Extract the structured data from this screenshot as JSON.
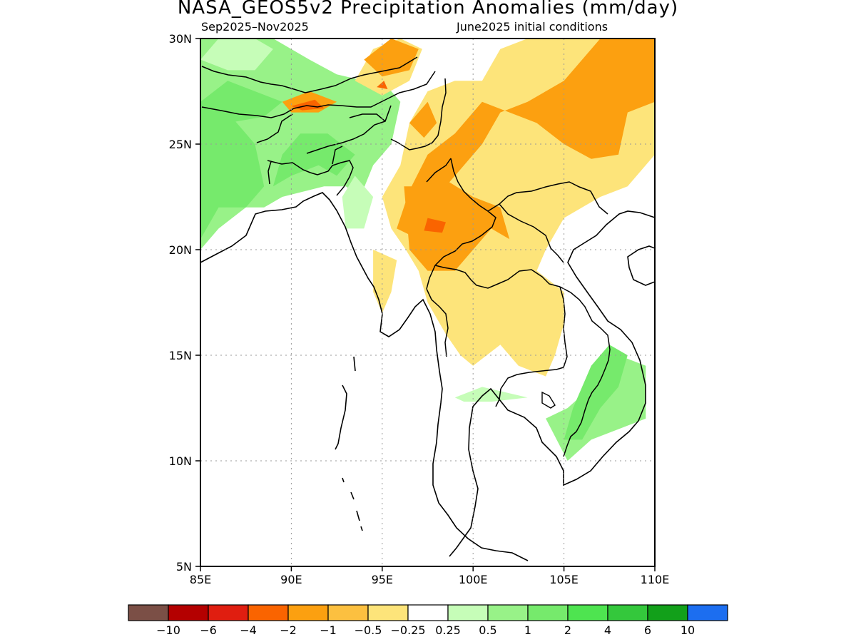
{
  "title": "NASA_GEOS5v2 Precipitation Anomalies (mm/day)",
  "period": "Sep2025–Nov2025",
  "initial_conditions": "June2025 initial conditions",
  "map": {
    "lon_range": [
      85,
      110
    ],
    "lat_range": [
      5,
      30
    ],
    "lon_ticks": [
      {
        "value": 85,
        "label": "85E"
      },
      {
        "value": 90,
        "label": "90E"
      },
      {
        "value": 95,
        "label": "95E"
      },
      {
        "value": 100,
        "label": "100E"
      },
      {
        "value": 105,
        "label": "105E"
      },
      {
        "value": 110,
        "label": "110E"
      }
    ],
    "lat_ticks": [
      {
        "value": 5,
        "label": "5N"
      },
      {
        "value": 10,
        "label": "10N"
      },
      {
        "value": 15,
        "label": "15N"
      },
      {
        "value": 20,
        "label": "20N"
      },
      {
        "value": 25,
        "label": "25N"
      },
      {
        "value": 30,
        "label": "30N"
      }
    ],
    "grid": "dotted"
  },
  "colorbar": {
    "colors": [
      "#7b4f46",
      "#b40000",
      "#e01e10",
      "#fa6400",
      "#fca010",
      "#fcc040",
      "#fde47a",
      "#ffffff",
      "#c6fdb8",
      "#98f288",
      "#76ea6c",
      "#4ee450",
      "#34c83c",
      "#12a01a",
      "#1c6ef0"
    ],
    "labels": [
      "−10",
      "−6",
      "−4",
      "−2",
      "−1",
      "−0.5",
      "−0.25",
      "0.25",
      "0.5",
      "1",
      "2",
      "4",
      "6",
      "10"
    ]
  },
  "anomaly_regions": [
    {
      "category": "0.5",
      "color": "#98f288",
      "polygon": [
        [
          85,
          20
        ],
        [
          86,
          21
        ],
        [
          87.5,
          22
        ],
        [
          88.5,
          22
        ],
        [
          89.5,
          22.5
        ],
        [
          91.8,
          23
        ],
        [
          93,
          23
        ],
        [
          93.8,
          22.5
        ],
        [
          94.5,
          24
        ],
        [
          95.5,
          25
        ],
        [
          96,
          27
        ],
        [
          95,
          28
        ],
        [
          94,
          28
        ],
        [
          92.5,
          28.3
        ],
        [
          91,
          29
        ],
        [
          89,
          30
        ],
        [
          85,
          30
        ]
      ]
    },
    {
      "category": "0.25",
      "color": "#c6fdb8",
      "polygon": [
        [
          85,
          29
        ],
        [
          86,
          30
        ],
        [
          88,
          30
        ],
        [
          89,
          29.5
        ],
        [
          88,
          28.5
        ],
        [
          86.5,
          28.5
        ]
      ]
    },
    {
      "category": "0.25",
      "color": "#c6fdb8",
      "polygon": [
        [
          93,
          21
        ],
        [
          94,
          21
        ],
        [
          94.5,
          22.5
        ],
        [
          93.5,
          23.5
        ],
        [
          92.8,
          22.5
        ]
      ]
    },
    {
      "category": "1",
      "color": "#76ea6c",
      "polygon": [
        [
          85,
          20.5
        ],
        [
          86,
          22
        ],
        [
          87.5,
          22
        ],
        [
          88.5,
          23
        ],
        [
          88,
          25
        ],
        [
          86.5,
          26.5
        ],
        [
          85,
          27
        ]
      ]
    },
    {
      "category": "1",
      "color": "#76ea6c",
      "polygon": [
        [
          89,
          23
        ],
        [
          90,
          23.5
        ],
        [
          91.5,
          24
        ],
        [
          92.5,
          23.5
        ],
        [
          93.5,
          24.5
        ],
        [
          92,
          25.5
        ],
        [
          90.5,
          25.5
        ],
        [
          89.5,
          24.5
        ]
      ]
    },
    {
      "category": "1",
      "color": "#76ea6c",
      "polygon": [
        [
          85,
          27
        ],
        [
          86.5,
          28
        ],
        [
          88,
          27.5
        ],
        [
          89.5,
          27
        ],
        [
          88.5,
          26.3
        ],
        [
          86.5,
          26
        ]
      ]
    },
    {
      "category": "0.5",
      "color": "#98f288",
      "polygon": [
        [
          107,
          14
        ],
        [
          108,
          15
        ],
        [
          109.5,
          14.5
        ],
        [
          109.5,
          12
        ],
        [
          108,
          11.5
        ],
        [
          106.5,
          11
        ],
        [
          105.2,
          10
        ],
        [
          104,
          12
        ],
        [
          105.2,
          12.5
        ],
        [
          106.5,
          13.5
        ]
      ]
    },
    {
      "category": "1",
      "color": "#76ea6c",
      "polygon": [
        [
          106,
          11
        ],
        [
          107,
          12.5
        ],
        [
          108,
          13.5
        ],
        [
          108.5,
          15
        ],
        [
          107.5,
          15.5
        ],
        [
          106.5,
          14.5
        ],
        [
          105.5,
          12.5
        ],
        [
          105,
          11
        ]
      ]
    },
    {
      "category": "0.25",
      "color": "#c6fdb8",
      "polygon": [
        [
          99,
          13
        ],
        [
          100.5,
          13.5
        ],
        [
          103,
          13
        ],
        [
          101,
          12.8
        ],
        [
          99.5,
          12.8
        ]
      ]
    },
    {
      "category": "-0.5",
      "color": "#fde47a",
      "polygon": [
        [
          95,
          22.5
        ],
        [
          96,
          24
        ],
        [
          96.5,
          26
        ],
        [
          97.5,
          27.5
        ],
        [
          99,
          28
        ],
        [
          100.5,
          28
        ],
        [
          101.5,
          29.5
        ],
        [
          103,
          30
        ],
        [
          110,
          30
        ],
        [
          110,
          24.5
        ],
        [
          108.5,
          23
        ],
        [
          107,
          22.5
        ],
        [
          106,
          22
        ],
        [
          105,
          21.5
        ],
        [
          104,
          20
        ],
        [
          103.5,
          19
        ],
        [
          105,
          18
        ],
        [
          105,
          16.5
        ],
        [
          104.5,
          15
        ],
        [
          104,
          14
        ],
        [
          102.5,
          14.5
        ],
        [
          101.5,
          15.5
        ],
        [
          100,
          14.5
        ],
        [
          99.3,
          15
        ],
        [
          98.5,
          16
        ],
        [
          97.5,
          17.5
        ],
        [
          97,
          19
        ],
        [
          96.3,
          20
        ],
        [
          95.5,
          21
        ]
      ]
    },
    {
      "category": "-0.5",
      "color": "#fde47a",
      "polygon": [
        [
          95,
          17
        ],
        [
          95.5,
          18
        ],
        [
          95.8,
          19.5
        ],
        [
          94.5,
          20
        ],
        [
          94.5,
          18
        ]
      ]
    },
    {
      "category": "-0.5",
      "color": "#fde47a",
      "polygon": [
        [
          93.5,
          28
        ],
        [
          94.5,
          29.5
        ],
        [
          96,
          30
        ],
        [
          97.2,
          29.5
        ],
        [
          96.5,
          28
        ],
        [
          95,
          27.3
        ]
      ]
    },
    {
      "category": "-1",
      "color": "#fca010",
      "polygon": [
        [
          95.8,
          21
        ],
        [
          96.5,
          22.8
        ],
        [
          97.5,
          24.5
        ],
        [
          99,
          25.5
        ],
        [
          100.5,
          27
        ],
        [
          102,
          26.5
        ],
        [
          103.5,
          26
        ],
        [
          105,
          25
        ],
        [
          106.5,
          24.3
        ],
        [
          108,
          24.5
        ],
        [
          108.5,
          26.5
        ],
        [
          110,
          27
        ],
        [
          110,
          30
        ],
        [
          107,
          30
        ],
        [
          105,
          28
        ],
        [
          103,
          27
        ],
        [
          101.5,
          26.5
        ],
        [
          100.5,
          25
        ],
        [
          99.5,
          24
        ],
        [
          98.5,
          23
        ],
        [
          98,
          21.5
        ],
        [
          97,
          20.5
        ]
      ]
    },
    {
      "category": "-1",
      "color": "#fca010",
      "polygon": [
        [
          96.2,
          23
        ],
        [
          96.5,
          20
        ],
        [
          97.5,
          19
        ],
        [
          99,
          19
        ],
        [
          100,
          20
        ],
        [
          101,
          21
        ],
        [
          102,
          20.5
        ],
        [
          101.5,
          22
        ],
        [
          100,
          22.5
        ],
        [
          98.5,
          23.3
        ],
        [
          97.3,
          23
        ]
      ]
    },
    {
      "category": "-1",
      "color": "#fca010",
      "polygon": [
        [
          94,
          29
        ],
        [
          95.5,
          30
        ],
        [
          97,
          29.5
        ],
        [
          96.5,
          28.5
        ],
        [
          95,
          28.2
        ]
      ]
    },
    {
      "category": "-1",
      "color": "#fca010",
      "polygon": [
        [
          89.5,
          27
        ],
        [
          91,
          27.5
        ],
        [
          92.5,
          27
        ],
        [
          91.5,
          26.5
        ],
        [
          90,
          26.5
        ]
      ]
    },
    {
      "category": "-1",
      "color": "#fca010",
      "polygon": [
        [
          96.5,
          26
        ],
        [
          97.5,
          27
        ],
        [
          98,
          26
        ],
        [
          97.3,
          25.3
        ]
      ]
    },
    {
      "category": "-2",
      "color": "#fa6400",
      "polygon": [
        [
          97.5,
          21.5
        ],
        [
          98.5,
          21.3
        ],
        [
          98.3,
          20.8
        ],
        [
          97.3,
          20.9
        ]
      ]
    },
    {
      "category": "-2",
      "color": "#fa6400",
      "polygon": [
        [
          90,
          26.8
        ],
        [
          91.3,
          27.1
        ],
        [
          91.8,
          26.7
        ],
        [
          90.6,
          26.6
        ]
      ]
    },
    {
      "category": "-2",
      "color": "#fa6400",
      "polygon": [
        [
          94.7,
          27.7
        ],
        [
          95.1,
          28
        ],
        [
          95.3,
          27.6
        ]
      ]
    }
  ]
}
